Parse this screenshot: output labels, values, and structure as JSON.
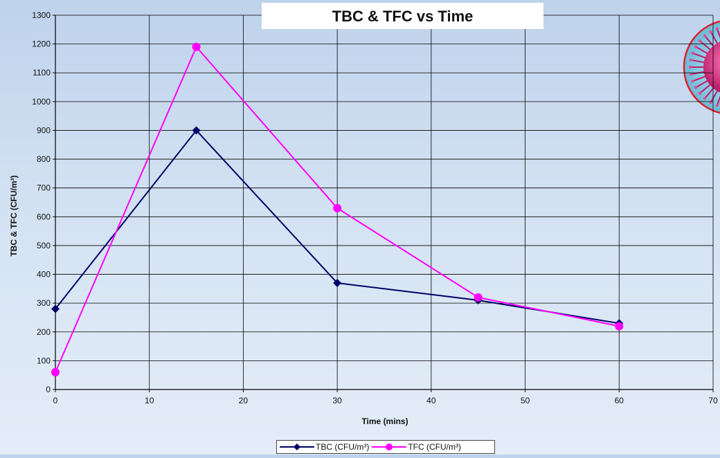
{
  "chart_data": {
    "type": "line",
    "title": "TBC & TFC vs Time",
    "xlabel": "Time (mins)",
    "ylabel": "TBC & TFC (CFU/m³)",
    "xlim": [
      0,
      70
    ],
    "ylim": [
      0,
      1300
    ],
    "x_ticks": [
      0,
      10,
      20,
      30,
      40,
      50,
      60,
      70
    ],
    "y_ticks": [
      0,
      100,
      200,
      300,
      400,
      500,
      600,
      700,
      800,
      900,
      1000,
      1100,
      1200,
      1300
    ],
    "grid": true,
    "legend_position": "bottom",
    "series": [
      {
        "name": "TBC (CFU/m³)",
        "color": "#000066",
        "marker": "diamond",
        "points": [
          [
            0,
            280
          ],
          [
            15,
            900
          ],
          [
            30,
            370
          ],
          [
            45,
            310
          ],
          [
            60,
            230
          ]
        ]
      },
      {
        "name": "TFC (CFU/m³)",
        "color": "#ff00ff",
        "marker": "circle",
        "points": [
          [
            0,
            60
          ],
          [
            15,
            1190
          ],
          [
            30,
            630
          ],
          [
            45,
            320
          ],
          [
            60,
            220
          ]
        ]
      }
    ]
  },
  "decoration": {
    "virus_icon_name": "virus-icon"
  }
}
